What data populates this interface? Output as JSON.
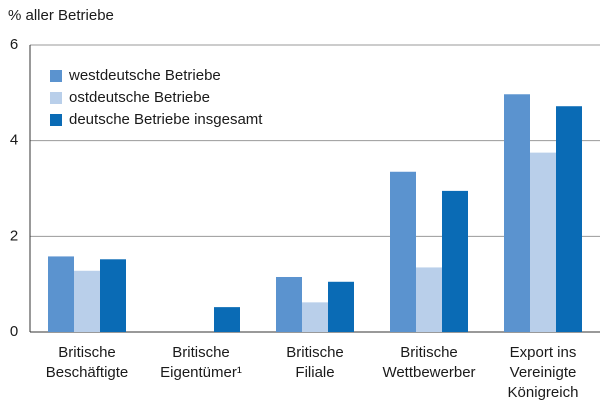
{
  "chart_data": {
    "type": "bar",
    "ylabel": "% aller Betriebe",
    "categories": [
      [
        "Britische",
        "Beschäftigte"
      ],
      [
        "Britische",
        "Eigentümer¹"
      ],
      [
        "Britische",
        "Filiale"
      ],
      [
        "Britische",
        "Wettbewerber"
      ],
      [
        "Export ins",
        "Vereinigte",
        "Königreich"
      ]
    ],
    "series": [
      {
        "name": "westdeutsche Betriebe",
        "color": "#5b93cf",
        "values": [
          1.58,
          0,
          1.15,
          3.35,
          4.97
        ]
      },
      {
        "name": "ostdeutsche Betriebe",
        "color": "#b9cfea",
        "values": [
          1.28,
          0,
          0.62,
          1.35,
          3.75
        ]
      },
      {
        "name": "deutsche Betriebe insgesamt",
        "color": "#0a6bb5",
        "values": [
          1.52,
          0.52,
          1.05,
          2.95,
          4.72
        ]
      }
    ],
    "ylim": [
      0,
      6
    ],
    "yticks": [
      0,
      2,
      4,
      6
    ],
    "grid": true,
    "legend": "top-left"
  }
}
